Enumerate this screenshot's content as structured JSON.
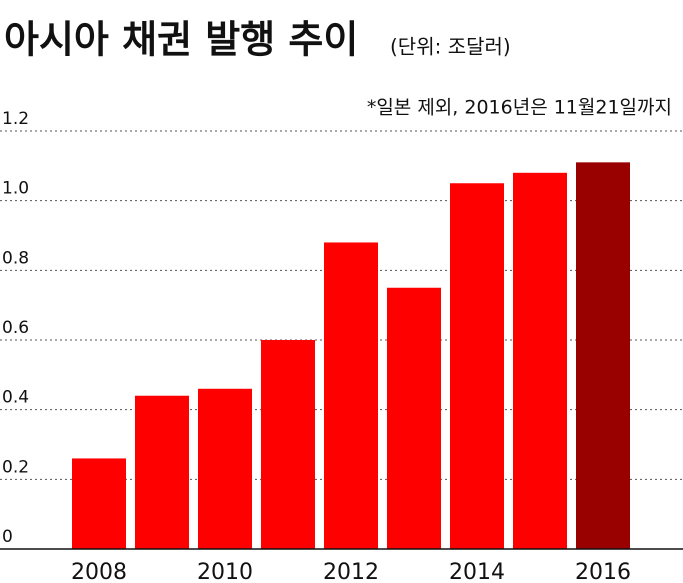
{
  "chart_data": {
    "type": "bar",
    "title": "아시아 채권 발행 추이",
    "subtitle": "(단위: 조달러)",
    "note": "*일본 제외, 2016년은 11월21일까지",
    "categories": [
      "2008",
      null,
      "2010",
      null,
      "2012",
      null,
      "2014",
      null,
      "2016"
    ],
    "values": [
      0.26,
      0.44,
      0.46,
      0.6,
      0.88,
      0.75,
      1.05,
      1.08,
      1.11
    ],
    "colors": [
      "#ff0000",
      "#ff0000",
      "#ff0000",
      "#ff0000",
      "#ff0000",
      "#ff0000",
      "#ff0000",
      "#ff0000",
      "#990000"
    ],
    "ylim": [
      0,
      1.2
    ],
    "yticks": [
      0,
      0.2,
      0.4,
      0.6,
      0.8,
      {
        "value": 1,
        "label": "1.0"
      },
      1.2
    ],
    "grid": true
  }
}
